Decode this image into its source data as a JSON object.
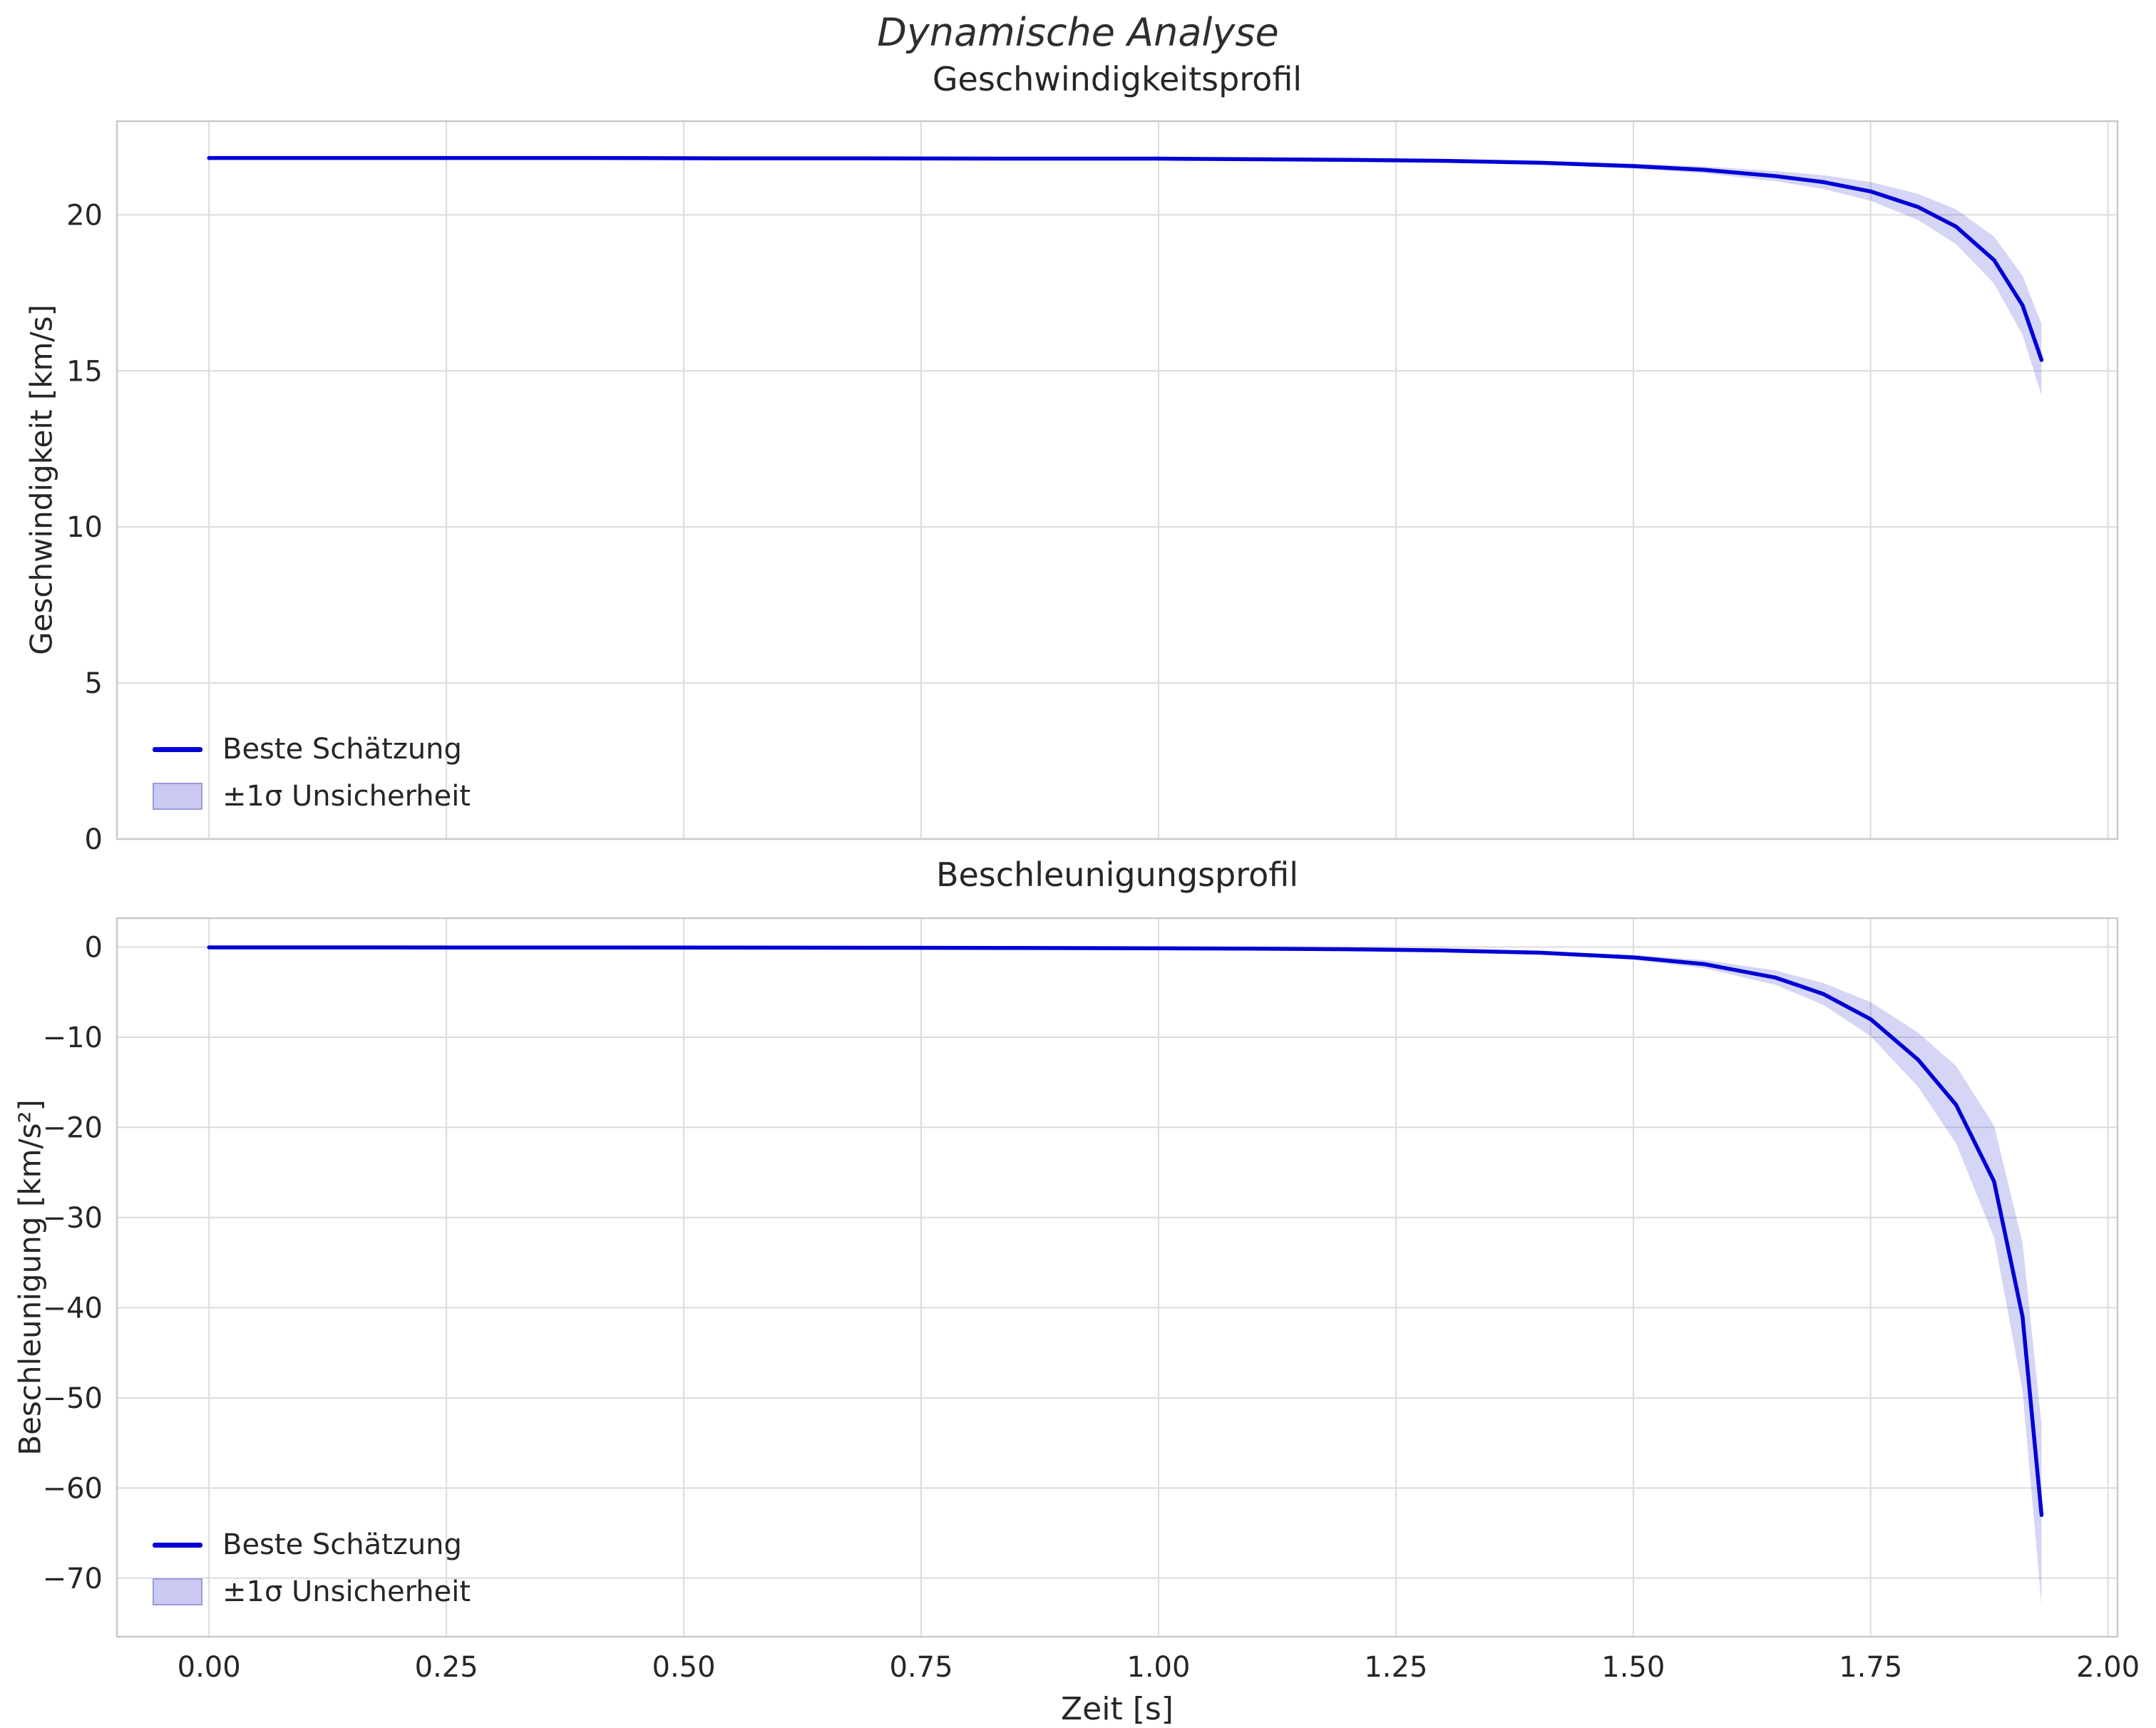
{
  "figure": {
    "title": "Dynamische Analyse",
    "xlabel": "Zeit [s]",
    "colors": {
      "line": "#0000d6",
      "band_fill": "#4040d0",
      "band_fill_opacity": 0.22,
      "band_swatch": "#c9c9f2",
      "band_swatch_edge": "#9a9ade",
      "grid": "#dcdcdc",
      "spine": "#c9c9c9",
      "text": "#262626",
      "background": "#ffffff"
    }
  },
  "chart_data": [
    {
      "type": "line",
      "title": "Geschwindigkeitsprofil",
      "ylabel": "Geschwindigkeit [km/s]",
      "xlim": [
        -0.097,
        2.01
      ],
      "ylim": [
        0,
        23.0
      ],
      "x_ticks": [
        0,
        0.25,
        0.5,
        0.75,
        1.0,
        1.25,
        1.5,
        1.75,
        2.0
      ],
      "x_tick_labels": [
        "0.00",
        "0.25",
        "0.50",
        "0.75",
        "1.00",
        "1.25",
        "1.50",
        "1.75",
        "2.00"
      ],
      "show_x_tick_labels": false,
      "y_ticks": [
        0,
        5,
        10,
        15,
        20
      ],
      "y_tick_labels": [
        "0",
        "5",
        "10",
        "15",
        "20"
      ],
      "grid": true,
      "legend_position": "lower-left",
      "legend": [
        {
          "label": "Beste Schätzung",
          "type": "line"
        },
        {
          "label": "±1σ Unsicherheit",
          "type": "patch"
        }
      ],
      "series": {
        "x": [
          0,
          0.1,
          0.25,
          0.4,
          0.55,
          0.7,
          0.85,
          1.0,
          1.1,
          1.2,
          1.3,
          1.4,
          1.5,
          1.575,
          1.65,
          1.7,
          1.75,
          1.8,
          1.84,
          1.88,
          1.91,
          1.93
        ],
        "best": [
          21.82,
          21.82,
          21.82,
          21.82,
          21.81,
          21.81,
          21.8,
          21.8,
          21.78,
          21.76,
          21.73,
          21.67,
          21.56,
          21.44,
          21.24,
          21.05,
          20.75,
          20.25,
          19.62,
          18.55,
          17.1,
          15.35
        ],
        "upper": [
          21.84,
          21.84,
          21.84,
          21.84,
          21.83,
          21.83,
          21.82,
          21.83,
          21.81,
          21.8,
          21.78,
          21.73,
          21.64,
          21.55,
          21.4,
          21.27,
          21.05,
          20.67,
          20.18,
          19.3,
          18.05,
          16.5
        ],
        "lower": [
          21.8,
          21.8,
          21.8,
          21.8,
          21.79,
          21.79,
          21.78,
          21.77,
          21.75,
          21.72,
          21.68,
          21.61,
          21.48,
          21.33,
          21.08,
          20.83,
          20.45,
          19.83,
          19.06,
          17.8,
          16.15,
          14.2
        ]
      }
    },
    {
      "type": "line",
      "title": "Beschleunigungsprofil",
      "ylabel": "Beschleunigung [km/s²]",
      "xlim": [
        -0.097,
        2.01
      ],
      "ylim": [
        -76.5,
        3.2
      ],
      "x_ticks": [
        0,
        0.25,
        0.5,
        0.75,
        1.0,
        1.25,
        1.5,
        1.75,
        2.0
      ],
      "x_tick_labels": [
        "0.00",
        "0.25",
        "0.50",
        "0.75",
        "1.00",
        "1.25",
        "1.50",
        "1.75",
        "2.00"
      ],
      "show_x_tick_labels": true,
      "y_ticks": [
        0,
        -10,
        -20,
        -30,
        -40,
        -50,
        -60,
        -70
      ],
      "y_tick_labels": [
        "0",
        "−10",
        "−20",
        "−30",
        "−40",
        "−50",
        "−60",
        "−70"
      ],
      "grid": true,
      "legend_position": "lower-left",
      "legend": [
        {
          "label": "Beste Schätzung",
          "type": "line"
        },
        {
          "label": "±1σ Unsicherheit",
          "type": "patch"
        }
      ],
      "series": {
        "x": [
          0,
          0.1,
          0.25,
          0.4,
          0.55,
          0.7,
          0.85,
          1.0,
          1.1,
          1.2,
          1.3,
          1.4,
          1.5,
          1.575,
          1.65,
          1.7,
          1.75,
          1.8,
          1.84,
          1.88,
          1.91,
          1.93
        ],
        "best": [
          -0.04,
          -0.04,
          -0.05,
          -0.05,
          -0.06,
          -0.08,
          -0.1,
          -0.14,
          -0.18,
          -0.25,
          -0.38,
          -0.62,
          -1.15,
          -1.9,
          -3.4,
          -5.2,
          -8.0,
          -12.5,
          -17.5,
          -26.0,
          -41.0,
          -63.0
        ],
        "upper": [
          -0.03,
          -0.03,
          -0.04,
          -0.04,
          -0.05,
          -0.06,
          -0.08,
          -0.11,
          -0.14,
          -0.19,
          -0.29,
          -0.47,
          -0.87,
          -1.45,
          -2.6,
          -4.0,
          -6.1,
          -9.5,
          -13.2,
          -19.8,
          -32.8,
          -53.0
        ],
        "lower": [
          -0.05,
          -0.05,
          -0.06,
          -0.06,
          -0.07,
          -0.1,
          -0.12,
          -0.17,
          -0.22,
          -0.31,
          -0.47,
          -0.77,
          -1.43,
          -2.35,
          -4.2,
          -6.4,
          -9.9,
          -15.5,
          -21.8,
          -32.2,
          -49.2,
          -73.0
        ]
      }
    }
  ]
}
